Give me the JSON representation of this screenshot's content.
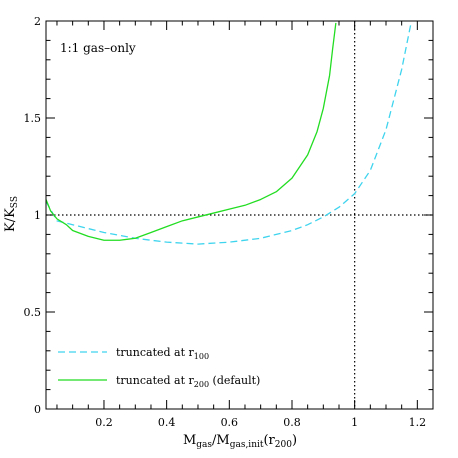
{
  "chart_data": {
    "type": "line",
    "annotation": "1:1 gas–only",
    "xlabel": {
      "main": "M",
      "sub1": "gas",
      "mid": "/M",
      "sub2": "gas,init",
      "tail1": "(r",
      "sub3": "200",
      "tail2": ")"
    },
    "ylabel": {
      "main": "K/K",
      "sub": "SS"
    },
    "xlim": [
      0.015,
      1.25
    ],
    "ylim": [
      0,
      2
    ],
    "x_ticks": [
      {
        "value": 0.2,
        "label": "0.2"
      },
      {
        "value": 0.4,
        "label": "0.4"
      },
      {
        "value": 0.6,
        "label": "0.6"
      },
      {
        "value": 0.8,
        "label": "0.8"
      },
      {
        "value": 1.0,
        "label": "1"
      },
      {
        "value": 1.2,
        "label": "1.2"
      }
    ],
    "y_ticks": [
      {
        "value": 0,
        "label": "0"
      },
      {
        "value": 0.5,
        "label": "0.5"
      },
      {
        "value": 1,
        "label": "1"
      },
      {
        "value": 1.5,
        "label": "1.5"
      },
      {
        "value": 2,
        "label": "2"
      }
    ],
    "reference_lines": {
      "horizontal_y": 1.0,
      "vertical_x": 1.0,
      "style": "dotted",
      "color": "#000000"
    },
    "series": [
      {
        "legend": {
          "main": "truncated at r",
          "sub": "100",
          "tail": ""
        },
        "color": "#3fd4ee",
        "dash": "dashed",
        "x": [
          0.015,
          0.05,
          0.1,
          0.15,
          0.2,
          0.3,
          0.4,
          0.5,
          0.6,
          0.7,
          0.8,
          0.85,
          0.9,
          0.95,
          1.0,
          1.05,
          1.1,
          1.15,
          1.18
        ],
        "y": [
          1.07,
          0.97,
          0.95,
          0.93,
          0.91,
          0.88,
          0.86,
          0.85,
          0.86,
          0.88,
          0.92,
          0.95,
          0.99,
          1.04,
          1.11,
          1.23,
          1.44,
          1.75,
          1.99
        ]
      },
      {
        "legend": {
          "main": "truncated at r",
          "sub": "200",
          "tail": " (default)"
        },
        "color": "#22dd22",
        "dash": "solid",
        "x": [
          0.015,
          0.03,
          0.05,
          0.08,
          0.1,
          0.15,
          0.2,
          0.25,
          0.3,
          0.35,
          0.4,
          0.45,
          0.5,
          0.55,
          0.6,
          0.65,
          0.7,
          0.75,
          0.8,
          0.85,
          0.88,
          0.9,
          0.92,
          0.93,
          0.94
        ],
        "y": [
          1.08,
          1.02,
          0.98,
          0.95,
          0.92,
          0.89,
          0.87,
          0.87,
          0.88,
          0.91,
          0.94,
          0.97,
          0.99,
          1.01,
          1.03,
          1.05,
          1.08,
          1.12,
          1.19,
          1.31,
          1.43,
          1.55,
          1.72,
          1.86,
          1.99
        ]
      }
    ]
  }
}
